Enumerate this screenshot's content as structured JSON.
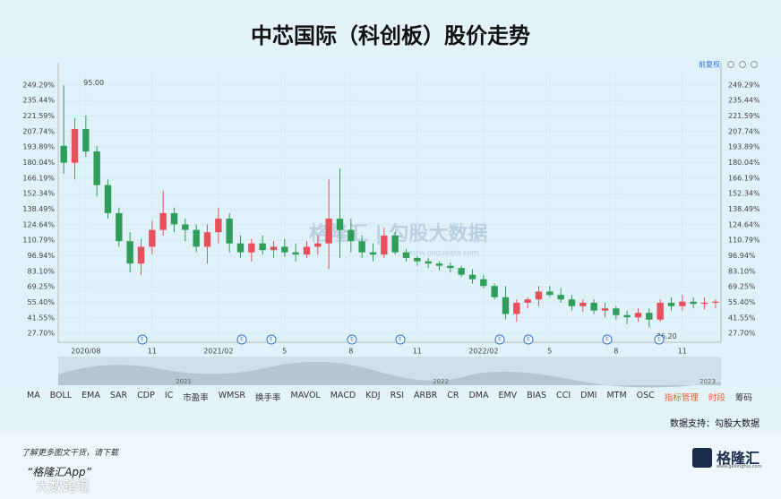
{
  "chart_data": {
    "type": "candlestick",
    "title": "中芯国际（科创板）股价走势",
    "adjust_label": "前复权",
    "watermark": "格隆汇 | 勾股大数据",
    "watermark_url": "www.gogudata.com",
    "annotations": [
      "95.00",
      "36.20"
    ],
    "event_marker": "E",
    "up_color": "#e8505b",
    "down_color": "#2f9e5a",
    "categories": [
      null,
      null,
      "2020/08",
      null,
      null,
      null,
      null,
      null,
      "11",
      null,
      null,
      null,
      null,
      null,
      "2021/02",
      null,
      null,
      null,
      null,
      null,
      "5",
      null,
      null,
      null,
      null,
      null,
      "8",
      null,
      null,
      null,
      null,
      null,
      "11",
      null,
      null,
      null,
      null,
      null,
      "2022/02",
      null,
      null,
      null,
      null,
      null,
      "5",
      null,
      null,
      null,
      null,
      null,
      "8",
      null,
      null,
      null,
      null,
      null,
      "11",
      null,
      null,
      null
    ],
    "ohlc": [
      [
        195,
        249,
        170,
        180
      ],
      [
        180,
        220,
        165,
        210
      ],
      [
        210,
        222,
        185,
        190
      ],
      [
        190,
        195,
        150,
        160
      ],
      [
        160,
        165,
        130,
        135
      ],
      [
        135,
        140,
        105,
        110
      ],
      [
        110,
        118,
        82,
        90
      ],
      [
        90,
        112,
        80,
        105
      ],
      [
        105,
        128,
        98,
        120
      ],
      [
        120,
        155,
        115,
        135
      ],
      [
        135,
        140,
        118,
        125
      ],
      [
        125,
        130,
        110,
        120
      ],
      [
        120,
        125,
        100,
        105
      ],
      [
        105,
        125,
        90,
        118
      ],
      [
        118,
        140,
        108,
        130
      ],
      [
        130,
        135,
        100,
        108
      ],
      [
        108,
        115,
        95,
        100
      ],
      [
        100,
        112,
        92,
        108
      ],
      [
        108,
        115,
        98,
        102
      ],
      [
        102,
        110,
        95,
        105
      ],
      [
        105,
        112,
        96,
        100
      ],
      [
        100,
        108,
        92,
        98
      ],
      [
        98,
        110,
        95,
        105
      ],
      [
        105,
        115,
        98,
        108
      ],
      [
        108,
        165,
        85,
        130
      ],
      [
        130,
        175,
        95,
        120
      ],
      [
        120,
        130,
        100,
        110
      ],
      [
        110,
        115,
        95,
        100
      ],
      [
        100,
        108,
        92,
        98
      ],
      [
        98,
        122,
        95,
        115
      ],
      [
        115,
        118,
        98,
        100
      ],
      [
        100,
        103,
        92,
        95
      ],
      [
        95,
        97,
        88,
        92
      ],
      [
        92,
        95,
        86,
        90
      ],
      [
        90,
        92,
        84,
        88
      ],
      [
        88,
        91,
        82,
        86
      ],
      [
        86,
        88,
        78,
        80
      ],
      [
        80,
        85,
        72,
        76
      ],
      [
        76,
        80,
        68,
        70
      ],
      [
        70,
        72,
        58,
        60
      ],
      [
        60,
        70,
        40,
        45
      ],
      [
        45,
        58,
        38,
        55
      ],
      [
        55,
        60,
        50,
        58
      ],
      [
        58,
        70,
        52,
        65
      ],
      [
        65,
        70,
        60,
        62
      ],
      [
        62,
        68,
        55,
        58
      ],
      [
        58,
        62,
        48,
        52
      ],
      [
        52,
        58,
        47,
        55
      ],
      [
        55,
        58,
        45,
        48
      ],
      [
        48,
        55,
        42,
        50
      ],
      [
        50,
        52,
        40,
        44
      ],
      [
        44,
        48,
        36,
        42
      ],
      [
        42,
        50,
        38,
        46
      ],
      [
        46,
        50,
        33,
        40
      ],
      [
        40,
        58,
        38,
        55
      ],
      [
        55,
        60,
        48,
        52
      ],
      [
        52,
        62,
        48,
        56
      ],
      [
        56,
        60,
        50,
        54
      ],
      [
        54,
        60,
        49,
        55
      ],
      [
        55,
        58,
        50,
        56
      ]
    ],
    "ylim": [
      19.8,
      261.2
    ],
    "yticks": [
      {
        "value": 27.7,
        "label": "27.70%"
      },
      {
        "value": 41.55,
        "label": "41.55%"
      },
      {
        "value": 55.4,
        "label": "55.40%"
      },
      {
        "value": 69.25,
        "label": "69.25%"
      },
      {
        "value": 83.1,
        "label": "83.10%"
      },
      {
        "value": 96.94,
        "label": "96.94%"
      },
      {
        "value": 110.79,
        "label": "110.79%"
      },
      {
        "value": 124.64,
        "label": "124.64%"
      },
      {
        "value": 138.49,
        "label": "138.49%"
      },
      {
        "value": 152.34,
        "label": "152.34%"
      },
      {
        "value": 166.19,
        "label": "166.19%"
      },
      {
        "value": 180.04,
        "label": "180.04%"
      },
      {
        "value": 193.89,
        "label": "193.89%"
      },
      {
        "value": 207.74,
        "label": "207.74%"
      },
      {
        "value": 221.59,
        "label": "221.59%"
      },
      {
        "value": 235.44,
        "label": "235.44%"
      },
      {
        "value": 249.29,
        "label": "249.29%"
      }
    ],
    "navigator_years": [
      "2021",
      "2022",
      "2023"
    ]
  },
  "indicator_tabs": [
    "MA",
    "BOLL",
    "EMA",
    "SAR",
    "CDP",
    "IC",
    "市盈率",
    "WMSR",
    "换手率",
    "MAVOL",
    "MACD",
    "KDJ",
    "RSI",
    "ARBR",
    "CR",
    "DMA",
    "EMV",
    "BIAS",
    "CCI",
    "DMI",
    "MTM",
    "OSC"
  ],
  "indicator_manage": "指标管理",
  "extra_tabs": [
    "时段",
    "筹码"
  ],
  "source": "数据支持：勾股大数据",
  "footer": {
    "line1": "了解更多图文干货，请下载",
    "line2": "“格隆汇App”",
    "logo": "格隆汇",
    "logo_url": "www.gelonghui.com",
    "corner": "大数跨境"
  }
}
